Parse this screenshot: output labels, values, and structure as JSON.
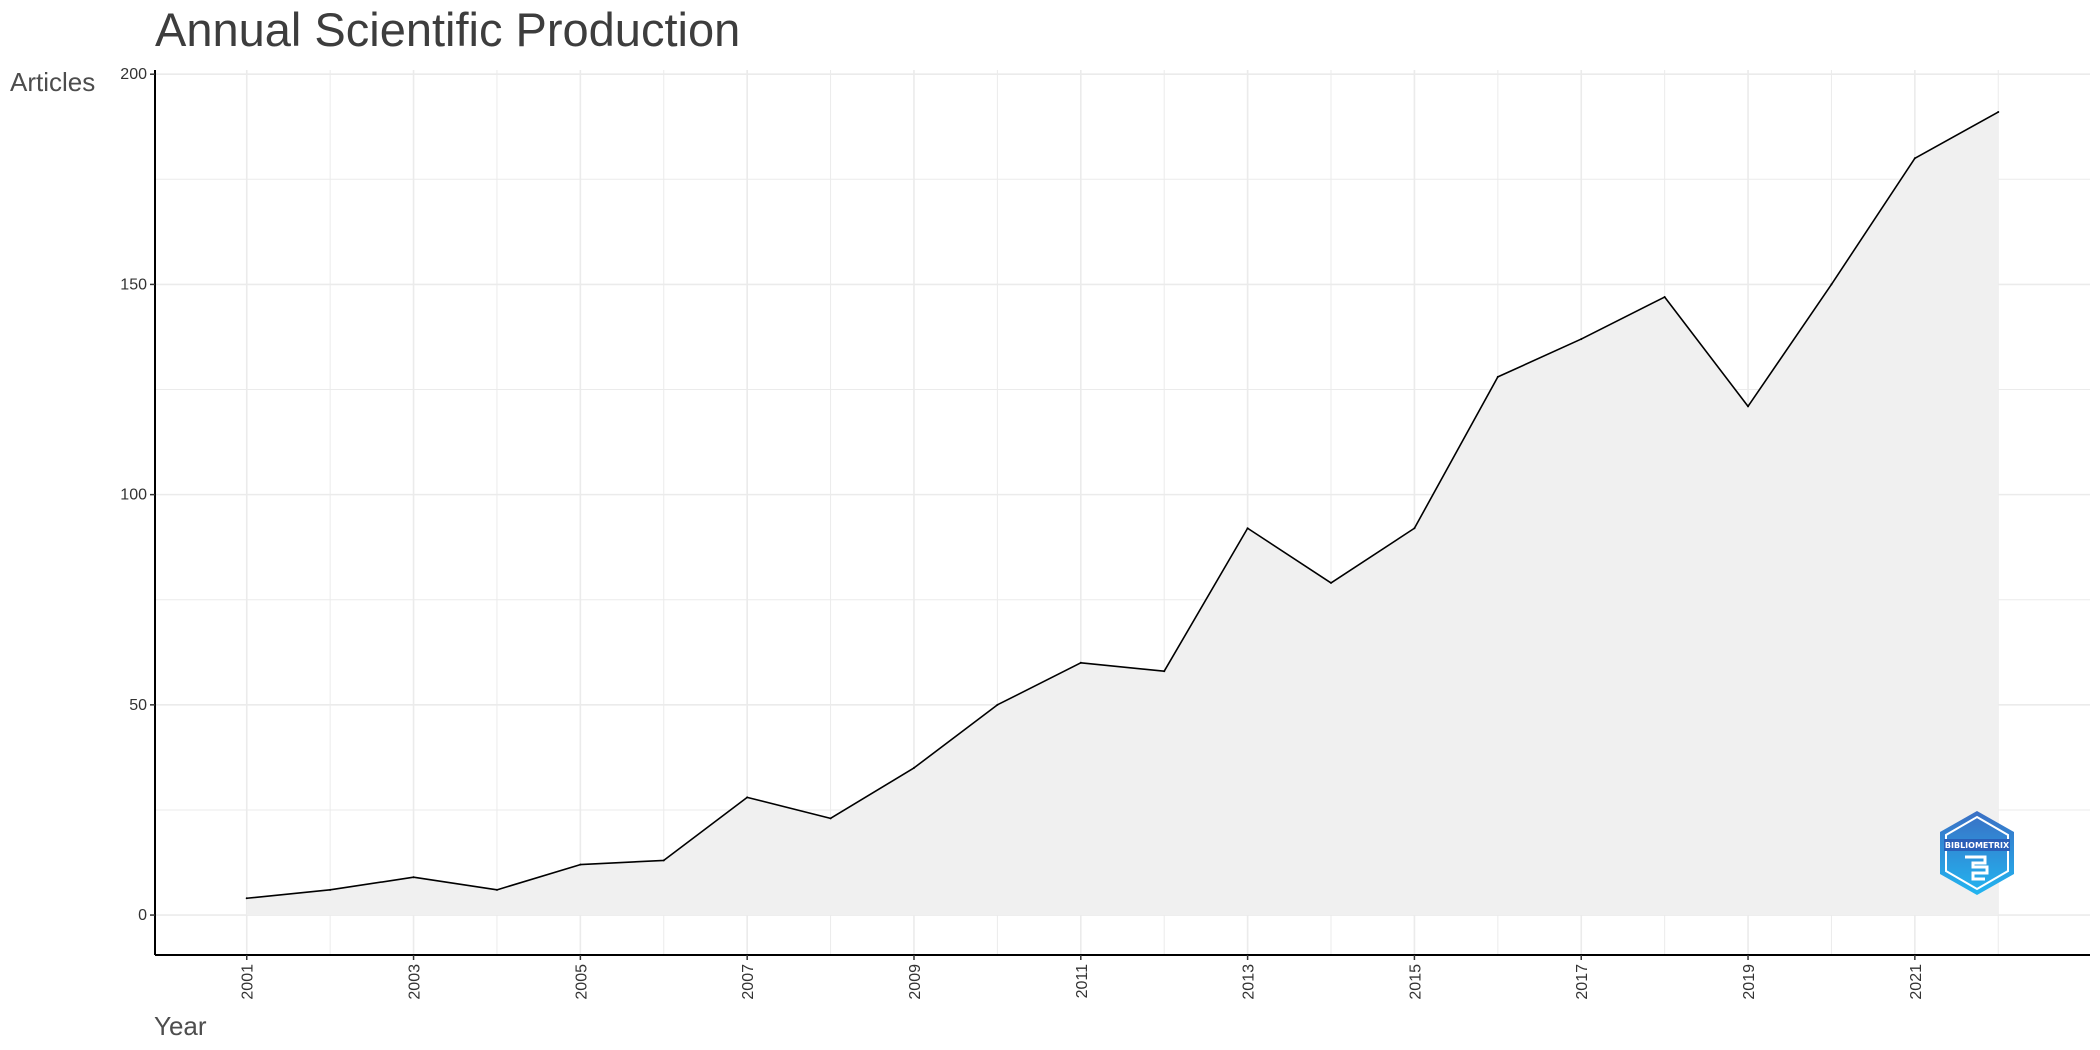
{
  "chart_data": {
    "type": "area",
    "title": "Annual Scientific Production",
    "xlabel": "Year",
    "ylabel": "Articles",
    "x": [
      2001,
      2002,
      2003,
      2004,
      2005,
      2006,
      2007,
      2008,
      2009,
      2010,
      2011,
      2012,
      2013,
      2014,
      2015,
      2016,
      2017,
      2018,
      2019,
      2020,
      2021,
      2022
    ],
    "series": [
      {
        "values": [
          4,
          6,
          9,
          6,
          12,
          13,
          28,
          23,
          35,
          50,
          60,
          58,
          92,
          79,
          92,
          128,
          137,
          147,
          121,
          150,
          180,
          191
        ]
      }
    ],
    "xlim": [
      1999.9,
      2023.1
    ],
    "ylim": [
      -9.5,
      201
    ],
    "x_ticks": [
      "2001",
      "2003",
      "2005",
      "2007",
      "2009",
      "2011",
      "2013",
      "2015",
      "2017",
      "2019",
      "2021"
    ],
    "y_ticks": [
      "0",
      "50",
      "100",
      "150",
      "200"
    ],
    "grid": true,
    "fill_color": "#f0f0f0",
    "line_color": "#000000",
    "grid_color": "#ebebeb"
  },
  "logo": {
    "name": "bibliometrix-logo",
    "text": "BIBLIOMETRIX",
    "color_top": "#3a6fc4",
    "color_bottom": "#22b5f0"
  }
}
